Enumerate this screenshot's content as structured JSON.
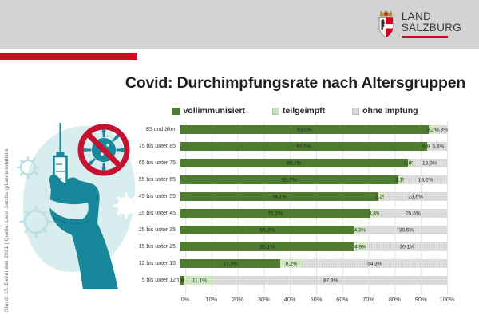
{
  "header": {
    "logo_line1": "LAND",
    "logo_line2": "SALZBURG"
  },
  "theme": {
    "accent_red": "#ce0b1f",
    "header_gray": "#d3d3d3",
    "teal": "#18879b"
  },
  "side_note": "Stand: 15. Dezember 2021  |  Quelle: Land Salzburg/Landesstatistik",
  "title": "Covid: Durchimpfungsrate nach Altersgruppen",
  "legend": [
    {
      "label": "vollimmunisiert",
      "color": "#4e7b2f"
    },
    {
      "label": "teilgeimpft",
      "color": "#c9e3ba"
    },
    {
      "label": "ohne Impfung",
      "color": "#d9d9d9"
    }
  ],
  "chart_data": {
    "type": "bar",
    "orientation": "horizontal",
    "stacked": true,
    "title": "Covid: Durchimpfungsrate nach Altersgruppen",
    "series_names": [
      "vollimmunisiert",
      "teilgeimpft",
      "ohne Impfung"
    ],
    "categories": [
      "85 und älter",
      "75 bis unter 85",
      "65 bis unter 75",
      "55 bis unter 65",
      "45 bis unter 55",
      "35 bis unter 45",
      "25 bis unter 35",
      "15 bis unter 25",
      "12 bis unter 15",
      "5 bis unter 12"
    ],
    "rows": [
      {
        "group": "85 und älter",
        "values": [
          93.0,
          3.2,
          3.8
        ],
        "labels": [
          "93,0%",
          "3,2%",
          "3,8%"
        ]
      },
      {
        "group": "75 bis unter 85",
        "values": [
          92.5,
          0.9,
          6.6
        ],
        "labels": [
          "92,5%",
          "0,9%",
          "6,6%"
        ]
      },
      {
        "group": "65 bis unter 75",
        "values": [
          85.2,
          1.8,
          13.0
        ],
        "labels": [
          "85,2%",
          "1,8%",
          "13,0%"
        ]
      },
      {
        "group": "55 bis unter 65",
        "values": [
          81.7,
          2.1,
          16.2
        ],
        "labels": [
          "81,7%",
          "2,1%",
          "16,2%"
        ]
      },
      {
        "group": "45 bis unter 55",
        "values": [
          74.1,
          2.2,
          23.6
        ],
        "labels": [
          "74,1%",
          "2,2%",
          "23,6%"
        ]
      },
      {
        "group": "35 bis unter 45",
        "values": [
          71.2,
          3.3,
          25.5
        ],
        "labels": [
          "71,2%",
          "3,3%",
          "25,5%"
        ]
      },
      {
        "group": "25 bis unter 35",
        "values": [
          65.2,
          4.3,
          30.5
        ],
        "labels": [
          "65,2%",
          "4,3%",
          "30,5%"
        ]
      },
      {
        "group": "15 bis unter 25",
        "values": [
          65.1,
          4.9,
          30.1
        ],
        "labels": [
          "65,1%",
          "4,9%",
          "30,1%"
        ]
      },
      {
        "group": "12 bis unter 15",
        "values": [
          37.5,
          8.2,
          54.3
        ],
        "labels": [
          "37,5%",
          "8,2%",
          "54,3%"
        ]
      },
      {
        "group": "5 bis unter 12",
        "values": [
          1.6,
          11.1,
          87.3
        ],
        "labels": [
          "1,6%",
          "11,1%",
          "87,3%"
        ]
      }
    ],
    "x_ticks": [
      "0%",
      "10%",
      "20%",
      "30%",
      "40%",
      "50%",
      "60%",
      "70%",
      "80%",
      "90%",
      "100%"
    ],
    "xlim": [
      0,
      100
    ],
    "grid": true,
    "legend_position": "top"
  }
}
